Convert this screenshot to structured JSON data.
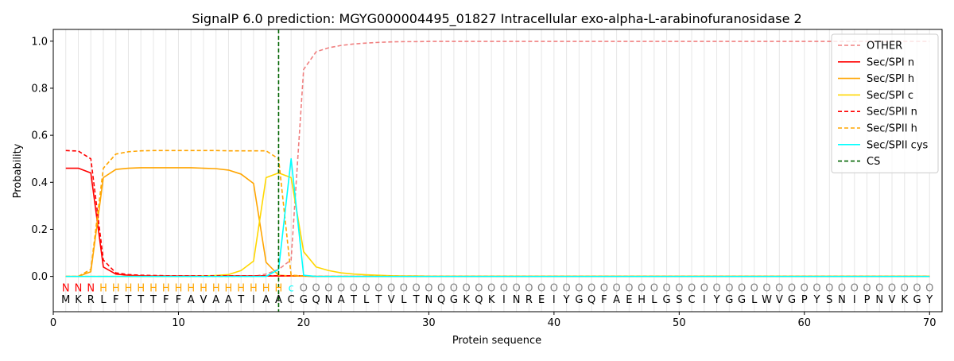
{
  "chart_data": {
    "type": "line",
    "title": "SignalP 6.0 prediction: MGYG000004495_01827 Intracellular exo-alpha-L-arabinofuranosidase 2",
    "xlabel": "Protein sequence",
    "ylabel": "Probability",
    "xlim": [
      0,
      71
    ],
    "ylim": [
      -0.15,
      1.05
    ],
    "xticks": [
      0,
      10,
      20,
      30,
      40,
      50,
      60,
      70
    ],
    "yticks": [
      0.0,
      0.2,
      0.4,
      0.6,
      0.8,
      1.0
    ],
    "legend_position": "top-right",
    "sequence": [
      "M",
      "K",
      "R",
      "L",
      "F",
      "T",
      "T",
      "T",
      "F",
      "F",
      "A",
      "V",
      "A",
      "A",
      "T",
      "I",
      "A",
      "A",
      "C",
      "G",
      "Q",
      "N",
      "A",
      "T",
      "L",
      "T",
      "V",
      "L",
      "T",
      "N",
      "Q",
      "G",
      "K",
      "Q",
      "K",
      "I",
      "N",
      "R",
      "E",
      "I",
      "Y",
      "G",
      "Q",
      "F",
      "A",
      "E",
      "H",
      "L",
      "G",
      "S",
      "C",
      "I",
      "Y",
      "G",
      "G",
      "L",
      "W",
      "V",
      "G",
      "P",
      "Y",
      "S",
      "N",
      "I",
      "P",
      "N",
      "V",
      "K",
      "G",
      "Y"
    ],
    "region_labels": [
      "N",
      "N",
      "N",
      "H",
      "H",
      "H",
      "H",
      "H",
      "H",
      "H",
      "H",
      "H",
      "H",
      "H",
      "H",
      "H",
      "H",
      "H",
      "c",
      "O",
      "O",
      "O",
      "O",
      "O",
      "O",
      "O",
      "O",
      "O",
      "O",
      "O",
      "O",
      "O",
      "O",
      "O",
      "O",
      "O",
      "O",
      "O",
      "O",
      "O",
      "O",
      "O",
      "O",
      "O",
      "O",
      "O",
      "O",
      "O",
      "O",
      "O",
      "O",
      "O",
      "O",
      "O",
      "O",
      "O",
      "O",
      "O",
      "O",
      "O",
      "O",
      "O",
      "O",
      "O",
      "O",
      "O",
      "O",
      "O",
      "O",
      "O"
    ],
    "region_colors": {
      "N": "#ff0000",
      "H": "#ffa500",
      "c": "#00ffff",
      "O": "#808080"
    },
    "cleavage_site": 18,
    "x": [
      1,
      2,
      3,
      4,
      5,
      6,
      7,
      8,
      9,
      10,
      11,
      12,
      13,
      14,
      15,
      16,
      17,
      18,
      19,
      20,
      21,
      22,
      23,
      24,
      25,
      26,
      27,
      28,
      29,
      30,
      31,
      32,
      33,
      34,
      35,
      36,
      37,
      38,
      39,
      40,
      41,
      42,
      43,
      44,
      45,
      46,
      47,
      48,
      49,
      50,
      51,
      52,
      53,
      54,
      55,
      56,
      57,
      58,
      59,
      60,
      61,
      62,
      63,
      64,
      65,
      66,
      67,
      68,
      69,
      70
    ],
    "series": [
      {
        "name": "OTHER",
        "color": "#f08080",
        "dash": true,
        "values": [
          0.0,
          0.0,
          0.0,
          0.0,
          0.0,
          0.0,
          0.0,
          0.0,
          0.0,
          0.0,
          0.0,
          0.0,
          0.0,
          0.0,
          0.0,
          0.0,
          0.01,
          0.03,
          0.07,
          0.88,
          0.955,
          0.972,
          0.982,
          0.988,
          0.992,
          0.995,
          0.997,
          0.998,
          0.998,
          0.999,
          0.999,
          0.999,
          0.999,
          0.999,
          0.999,
          0.999,
          0.999,
          0.999,
          0.999,
          0.999,
          0.999,
          0.999,
          0.999,
          0.999,
          0.999,
          0.999,
          0.999,
          0.999,
          0.999,
          0.999,
          0.999,
          0.999,
          0.999,
          0.999,
          0.999,
          0.999,
          0.999,
          0.999,
          0.999,
          0.999,
          0.999,
          0.999,
          0.999,
          0.999,
          0.999,
          0.999,
          0.999,
          0.999,
          0.999,
          0.999
        ]
      },
      {
        "name": "Sec/SPI n",
        "color": "#ff0000",
        "dash": false,
        "values": [
          0.46,
          0.46,
          0.44,
          0.04,
          0.01,
          0.005,
          0.003,
          0.002,
          0.002,
          0.002,
          0.002,
          0.002,
          0.002,
          0.002,
          0.002,
          0.002,
          0.002,
          0.002,
          0.002,
          0.002,
          0.0,
          0.0,
          0.0,
          0.0,
          0.0,
          0.0,
          0.0,
          0.0,
          0.0,
          0.0,
          0.0,
          0.0,
          0.0,
          0.0,
          0.0,
          0.0,
          0.0,
          0.0,
          0.0,
          0.0,
          0.0,
          0.0,
          0.0,
          0.0,
          0.0,
          0.0,
          0.0,
          0.0,
          0.0,
          0.0,
          0.0,
          0.0,
          0.0,
          0.0,
          0.0,
          0.0,
          0.0,
          0.0,
          0.0,
          0.0,
          0.0,
          0.0,
          0.0,
          0.0,
          0.0,
          0.0,
          0.0,
          0.0,
          0.0,
          0.0
        ]
      },
      {
        "name": "Sec/SPI h",
        "color": "#ffa500",
        "dash": false,
        "values": [
          0.0,
          0.0,
          0.02,
          0.42,
          0.455,
          0.46,
          0.462,
          0.462,
          0.462,
          0.462,
          0.462,
          0.46,
          0.458,
          0.452,
          0.435,
          0.395,
          0.06,
          0.005,
          0.002,
          0.001,
          0.0,
          0.0,
          0.0,
          0.0,
          0.0,
          0.0,
          0.0,
          0.0,
          0.0,
          0.0,
          0.0,
          0.0,
          0.0,
          0.0,
          0.0,
          0.0,
          0.0,
          0.0,
          0.0,
          0.0,
          0.0,
          0.0,
          0.0,
          0.0,
          0.0,
          0.0,
          0.0,
          0.0,
          0.0,
          0.0,
          0.0,
          0.0,
          0.0,
          0.0,
          0.0,
          0.0,
          0.0,
          0.0,
          0.0,
          0.0,
          0.0,
          0.0,
          0.0,
          0.0,
          0.0,
          0.0,
          0.0,
          0.0,
          0.0,
          0.0
        ]
      },
      {
        "name": "Sec/SPI c",
        "color": "#ffd700",
        "dash": false,
        "values": [
          0.0,
          0.0,
          0.0,
          0.0,
          0.0,
          0.0,
          0.0,
          0.0,
          0.0,
          0.0,
          0.0,
          0.002,
          0.004,
          0.008,
          0.025,
          0.065,
          0.42,
          0.44,
          0.42,
          0.105,
          0.04,
          0.025,
          0.015,
          0.01,
          0.007,
          0.005,
          0.003,
          0.002,
          0.002,
          0.001,
          0.001,
          0.001,
          0.001,
          0.001,
          0.001,
          0.001,
          0.001,
          0.001,
          0.001,
          0.001,
          0.001,
          0.001,
          0.001,
          0.001,
          0.001,
          0.001,
          0.001,
          0.001,
          0.001,
          0.001,
          0.001,
          0.001,
          0.001,
          0.001,
          0.001,
          0.001,
          0.001,
          0.001,
          0.001,
          0.001,
          0.001,
          0.001,
          0.001,
          0.001,
          0.001,
          0.001,
          0.001,
          0.001,
          0.001,
          0.001
        ]
      },
      {
        "name": "Sec/SPII n",
        "color": "#ff0000",
        "dash": true,
        "values": [
          0.535,
          0.533,
          0.5,
          0.07,
          0.015,
          0.008,
          0.005,
          0.004,
          0.003,
          0.003,
          0.003,
          0.003,
          0.003,
          0.003,
          0.003,
          0.003,
          0.003,
          0.003,
          0.003,
          0.003,
          0.0,
          0.0,
          0.0,
          0.0,
          0.0,
          0.0,
          0.0,
          0.0,
          0.0,
          0.0,
          0.0,
          0.0,
          0.0,
          0.0,
          0.0,
          0.0,
          0.0,
          0.0,
          0.0,
          0.0,
          0.0,
          0.0,
          0.0,
          0.0,
          0.0,
          0.0,
          0.0,
          0.0,
          0.0,
          0.0,
          0.0,
          0.0,
          0.0,
          0.0,
          0.0,
          0.0,
          0.0,
          0.0,
          0.0,
          0.0,
          0.0,
          0.0,
          0.0,
          0.0,
          0.0,
          0.0,
          0.0,
          0.0,
          0.0,
          0.0
        ]
      },
      {
        "name": "Sec/SPII h",
        "color": "#ffa500",
        "dash": true,
        "values": [
          0.0,
          0.0,
          0.03,
          0.46,
          0.52,
          0.53,
          0.534,
          0.535,
          0.535,
          0.535,
          0.535,
          0.535,
          0.535,
          0.534,
          0.534,
          0.534,
          0.534,
          0.5,
          0.005,
          0.002,
          0.0,
          0.0,
          0.0,
          0.0,
          0.0,
          0.0,
          0.0,
          0.0,
          0.0,
          0.0,
          0.0,
          0.0,
          0.0,
          0.0,
          0.0,
          0.0,
          0.0,
          0.0,
          0.0,
          0.0,
          0.0,
          0.0,
          0.0,
          0.0,
          0.0,
          0.0,
          0.0,
          0.0,
          0.0,
          0.0,
          0.0,
          0.0,
          0.0,
          0.0,
          0.0,
          0.0,
          0.0,
          0.0,
          0.0,
          0.0,
          0.0,
          0.0,
          0.0,
          0.0,
          0.0,
          0.0,
          0.0,
          0.0,
          0.0,
          0.0
        ]
      },
      {
        "name": "Sec/SPII cys",
        "color": "#00ffff",
        "dash": false,
        "values": [
          0.0,
          0.0,
          0.0,
          0.0,
          0.0,
          0.0,
          0.0,
          0.0,
          0.0,
          0.0,
          0.0,
          0.0,
          0.0,
          0.0,
          0.0,
          0.0,
          0.0,
          0.03,
          0.5,
          0.005,
          0.0,
          0.0,
          0.0,
          0.0,
          0.0,
          0.0,
          0.0,
          0.0,
          0.0,
          0.0,
          0.0,
          0.0,
          0.0,
          0.0,
          0.0,
          0.0,
          0.0,
          0.0,
          0.0,
          0.0,
          0.0,
          0.0,
          0.0,
          0.0,
          0.0,
          0.0,
          0.0,
          0.0,
          0.0,
          0.0,
          0.0,
          0.0,
          0.0,
          0.0,
          0.0,
          0.0,
          0.0,
          0.0,
          0.0,
          0.0,
          0.0,
          0.0,
          0.0,
          0.0,
          0.0,
          0.0,
          0.0,
          0.0,
          0.0,
          0.0
        ]
      }
    ],
    "cs_legend": {
      "name": "CS",
      "color": "#006400"
    }
  }
}
